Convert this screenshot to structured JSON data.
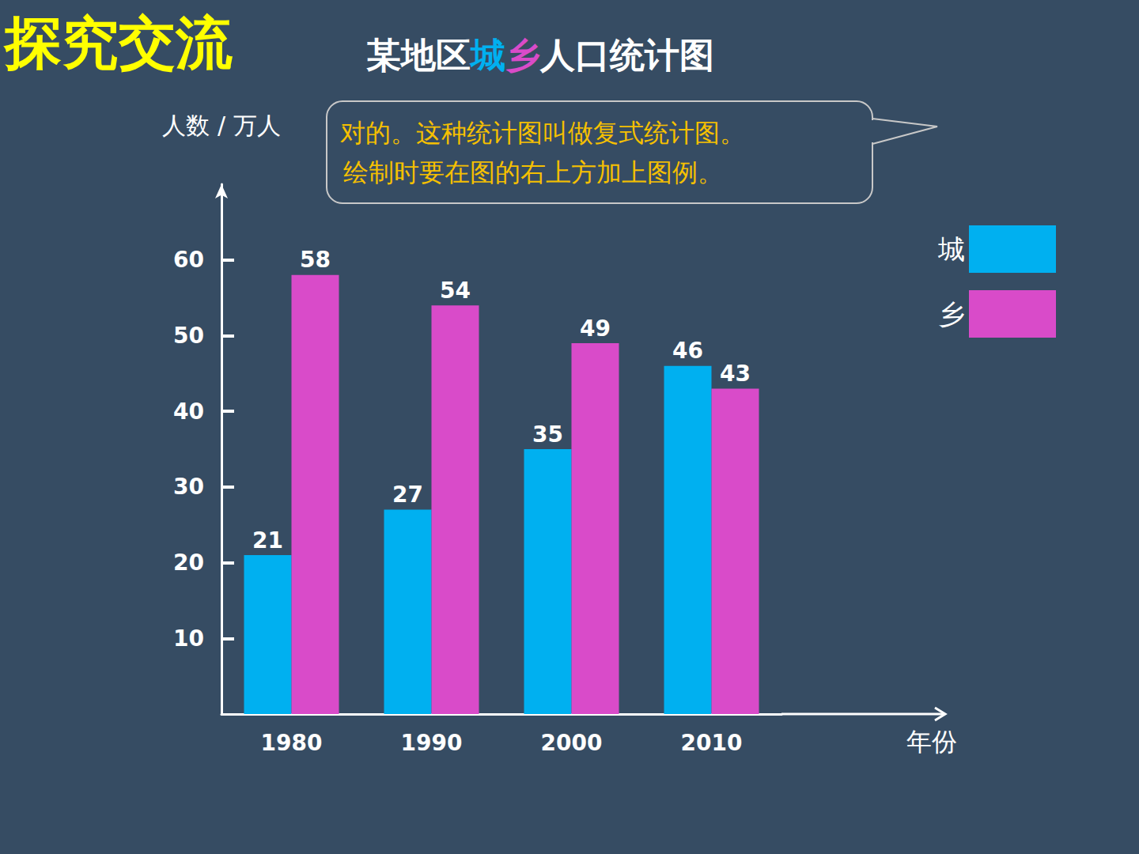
{
  "chart_data": {
    "type": "bar",
    "heading": "探究交流",
    "title": "某地区城乡人口统计图",
    "annotations": [
      "对的。这种统计图叫做复式统计图。",
      "绘制时要在图的右上方加上图例。"
    ],
    "y_label": "人数 / 万人",
    "x_label": "年份",
    "categories": [
      "1980",
      "1990",
      "2000",
      "2010"
    ],
    "series": [
      {
        "name": "城",
        "color": "#00b0f0",
        "values": [
          21,
          27,
          35,
          46
        ]
      },
      {
        "name": "乡",
        "color": "#d94bc9",
        "values": [
          58,
          54,
          49,
          43
        ]
      }
    ],
    "ylim": [
      0,
      70
    ],
    "yticks": [
      10,
      20,
      30,
      40,
      50,
      60
    ],
    "grid": false,
    "legend": "upper right",
    "data_labels": true
  }
}
